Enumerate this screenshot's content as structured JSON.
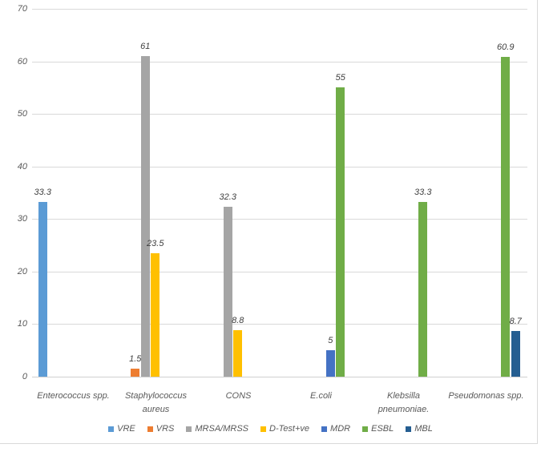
{
  "chart_data": {
    "type": "bar",
    "title": "",
    "xlabel": "",
    "ylabel": "",
    "categories": [
      "Enterococcus spp.",
      "Staphylococcus aureus",
      "CONS",
      "E.coli",
      "Klebsilla pneumoniae.",
      "Pseudomonas spp."
    ],
    "series": [
      {
        "name": "VRE",
        "color": "#5b9bd5",
        "values": [
          33.3,
          null,
          null,
          null,
          null,
          null
        ],
        "labels": [
          "33.3",
          "",
          "",
          "",
          "",
          ""
        ]
      },
      {
        "name": "VRS",
        "color": "#ed7d31",
        "values": [
          null,
          1.5,
          null,
          null,
          null,
          null
        ],
        "labels": [
          "",
          "1.5",
          "",
          "",
          "",
          ""
        ]
      },
      {
        "name": "MRSA/MRSS",
        "color": "#a5a5a5",
        "values": [
          null,
          61,
          32.3,
          null,
          null,
          null
        ],
        "labels": [
          "",
          "61",
          "32.3",
          "",
          "",
          ""
        ]
      },
      {
        "name": "D-Test+ve",
        "color": "#ffc000",
        "values": [
          null,
          23.5,
          8.8,
          null,
          null,
          null
        ],
        "labels": [
          "",
          "23.5",
          "8.8",
          "",
          "",
          ""
        ]
      },
      {
        "name": "MDR",
        "color": "#4472c4",
        "values": [
          null,
          null,
          null,
          5,
          null,
          null
        ],
        "labels": [
          "",
          "",
          "",
          "5",
          "",
          ""
        ]
      },
      {
        "name": "ESBL",
        "color": "#70ad47",
        "values": [
          null,
          null,
          null,
          55,
          33.3,
          60.9
        ],
        "labels": [
          "",
          "",
          "",
          "55",
          "33.3",
          "60.9"
        ]
      },
      {
        "name": "MBL",
        "color": "#255e91",
        "values": [
          null,
          null,
          null,
          null,
          null,
          8.7
        ],
        "labels": [
          "",
          "",
          "",
          "",
          "",
          "8.7"
        ]
      }
    ],
    "ylim": [
      0,
      70
    ],
    "yticks": [
      0,
      10,
      20,
      30,
      40,
      50,
      60,
      70
    ],
    "grid": true,
    "legend_position": "bottom",
    "text_color": "#595959",
    "gridline_color": "#d9d9d9"
  }
}
